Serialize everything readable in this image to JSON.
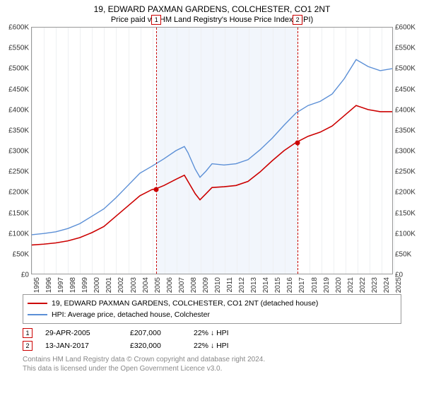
{
  "title": "19, EDWARD PAXMAN GARDENS, COLCHESTER, CO1 2NT",
  "subtitle": "Price paid vs. HM Land Registry's House Price Index (HPI)",
  "chart": {
    "type": "line",
    "background_color": "#ffffff",
    "grid_color": "#eef0f2",
    "border_color": "#999999",
    "shade_color": "#eaf0fa",
    "y_axis": {
      "min": 0,
      "max": 600000,
      "step": 50000,
      "ticks": [
        "£0",
        "£50K",
        "£100K",
        "£150K",
        "£200K",
        "£250K",
        "£300K",
        "£350K",
        "£400K",
        "£450K",
        "£500K",
        "£550K",
        "£600K"
      ],
      "label_color": "#333333",
      "fontsize": 10
    },
    "x_axis": {
      "min": 1995,
      "max": 2025,
      "ticks": [
        "1995",
        "1996",
        "1997",
        "1998",
        "1999",
        "2000",
        "2001",
        "2002",
        "2003",
        "2004",
        "2005",
        "2006",
        "2007",
        "2008",
        "2009",
        "2010",
        "2011",
        "2012",
        "2013",
        "2014",
        "2015",
        "2016",
        "2017",
        "2018",
        "2019",
        "2020",
        "2021",
        "2022",
        "2023",
        "2024",
        "2025"
      ],
      "label_color": "#333333",
      "fontsize": 10
    },
    "shaded_range": {
      "start": 2005.33,
      "end": 2017.04
    },
    "series": [
      {
        "name": "property",
        "label": "19, EDWARD PAXMAN GARDENS, COLCHESTER, CO1 2NT (detached house)",
        "color": "#cc0000",
        "line_width": 1.6,
        "data": [
          [
            1995,
            70000
          ],
          [
            1996,
            72000
          ],
          [
            1997,
            75000
          ],
          [
            1998,
            80000
          ],
          [
            1999,
            88000
          ],
          [
            2000,
            100000
          ],
          [
            2001,
            115000
          ],
          [
            2002,
            140000
          ],
          [
            2003,
            165000
          ],
          [
            2004,
            190000
          ],
          [
            2005,
            205000
          ],
          [
            2005.33,
            207000
          ],
          [
            2006,
            215000
          ],
          [
            2007,
            230000
          ],
          [
            2007.7,
            240000
          ],
          [
            2008,
            225000
          ],
          [
            2008.6,
            195000
          ],
          [
            2009,
            180000
          ],
          [
            2009.5,
            195000
          ],
          [
            2010,
            210000
          ],
          [
            2011,
            212000
          ],
          [
            2012,
            215000
          ],
          [
            2013,
            225000
          ],
          [
            2014,
            248000
          ],
          [
            2015,
            275000
          ],
          [
            2016,
            300000
          ],
          [
            2017,
            320000
          ],
          [
            2018,
            335000
          ],
          [
            2019,
            345000
          ],
          [
            2020,
            360000
          ],
          [
            2021,
            385000
          ],
          [
            2022,
            410000
          ],
          [
            2023,
            400000
          ],
          [
            2024,
            395000
          ],
          [
            2025,
            395000
          ]
        ]
      },
      {
        "name": "hpi",
        "label": "HPI: Average price, detached house, Colchester",
        "color": "#5b8fd6",
        "line_width": 1.4,
        "data": [
          [
            1995,
            95000
          ],
          [
            1996,
            98000
          ],
          [
            1997,
            102000
          ],
          [
            1998,
            110000
          ],
          [
            1999,
            122000
          ],
          [
            2000,
            140000
          ],
          [
            2001,
            158000
          ],
          [
            2002,
            185000
          ],
          [
            2003,
            215000
          ],
          [
            2004,
            245000
          ],
          [
            2005,
            262000
          ],
          [
            2006,
            280000
          ],
          [
            2007,
            300000
          ],
          [
            2007.7,
            310000
          ],
          [
            2008,
            295000
          ],
          [
            2008.6,
            255000
          ],
          [
            2009,
            235000
          ],
          [
            2009.5,
            250000
          ],
          [
            2010,
            268000
          ],
          [
            2011,
            265000
          ],
          [
            2012,
            268000
          ],
          [
            2013,
            278000
          ],
          [
            2014,
            302000
          ],
          [
            2015,
            330000
          ],
          [
            2016,
            362000
          ],
          [
            2017,
            392000
          ],
          [
            2018,
            410000
          ],
          [
            2019,
            420000
          ],
          [
            2020,
            438000
          ],
          [
            2021,
            475000
          ],
          [
            2022,
            522000
          ],
          [
            2023,
            505000
          ],
          [
            2024,
            495000
          ],
          [
            2025,
            500000
          ]
        ]
      }
    ],
    "sale_markers": [
      {
        "id": "1",
        "year": 2005.33,
        "price": 207000,
        "color": "#cc0000"
      },
      {
        "id": "2",
        "year": 2017.04,
        "price": 320000,
        "color": "#cc0000"
      }
    ]
  },
  "legend": {
    "items": [
      {
        "color": "#cc0000",
        "text": "19, EDWARD PAXMAN GARDENS, COLCHESTER, CO1 2NT (detached house)"
      },
      {
        "color": "#5b8fd6",
        "text": "HPI: Average price, detached house, Colchester"
      }
    ]
  },
  "sales": [
    {
      "id": "1",
      "date": "29-APR-2005",
      "price": "£207,000",
      "diff": "22% ↓ HPI"
    },
    {
      "id": "2",
      "date": "13-JAN-2017",
      "price": "£320,000",
      "diff": "22% ↓ HPI"
    }
  ],
  "footer": {
    "line1": "Contains HM Land Registry data © Crown copyright and database right 2024.",
    "line2": "This data is licensed under the Open Government Licence v3.0."
  }
}
